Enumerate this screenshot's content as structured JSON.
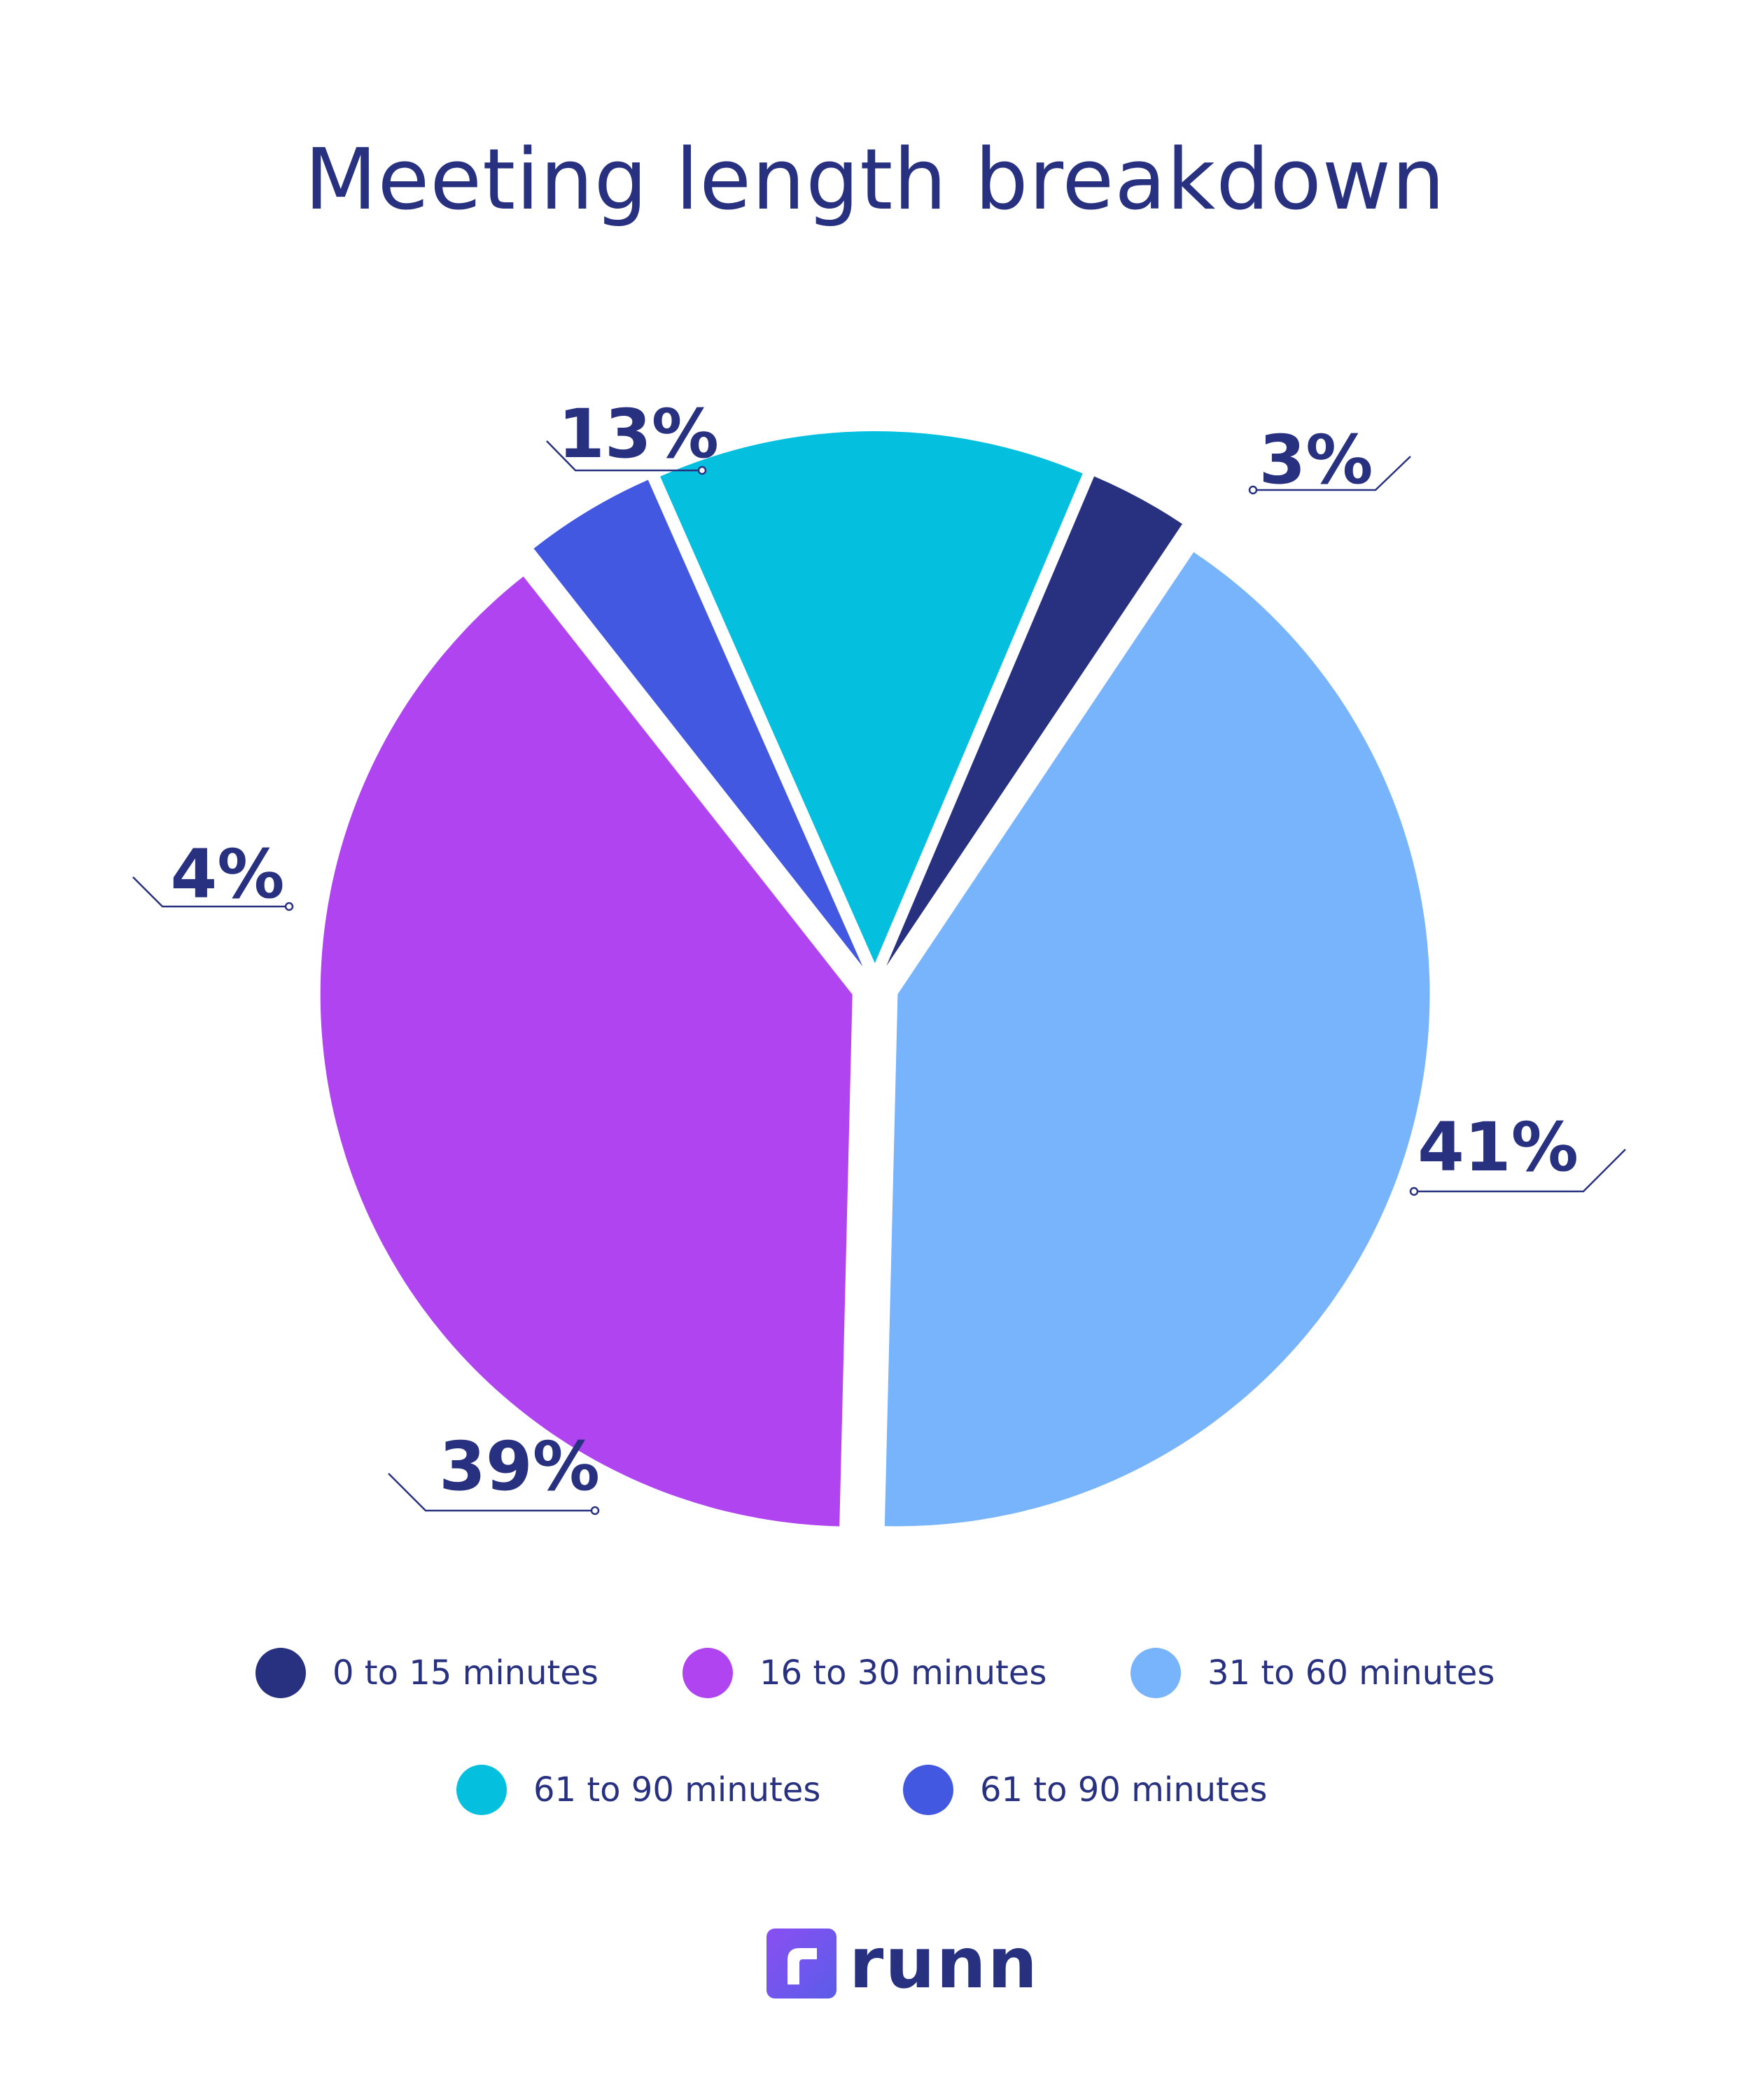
{
  "chart_data": {
    "type": "pie",
    "title": "Meeting length breakdown",
    "slices": [
      {
        "label": "0 to 15 minutes",
        "value": 3,
        "display": "3%",
        "color": "#283180"
      },
      {
        "label": "31 to 60 minutes",
        "value": 41,
        "display": "41%",
        "color": "#78B4FC"
      },
      {
        "label": "16 to 30 minutes",
        "value": 39,
        "display": "39%",
        "color": "#AF44F0"
      },
      {
        "label": "61 to 90 minutes",
        "value": 4,
        "display": "4%",
        "color": "#4358E0"
      },
      {
        "label": "61 to 90 minutes",
        "value": 13,
        "display": "13%",
        "color": "#04C0DE"
      }
    ],
    "legend": [
      {
        "label": "0 to 15 minutes",
        "color": "#283180"
      },
      {
        "label": "16 to 30 minutes",
        "color": "#AF44F0"
      },
      {
        "label": "31 to 60 minutes",
        "color": "#78B4FC"
      },
      {
        "label": "61 to 90 minutes",
        "color": "#04C0DE"
      },
      {
        "label": "61 to 90 minutes",
        "color": "#4358E0"
      }
    ],
    "legend_position": "bottom"
  },
  "brand": {
    "name": "runn",
    "logo_icon": "runn-logo-icon",
    "color": "#6B4FF0"
  }
}
